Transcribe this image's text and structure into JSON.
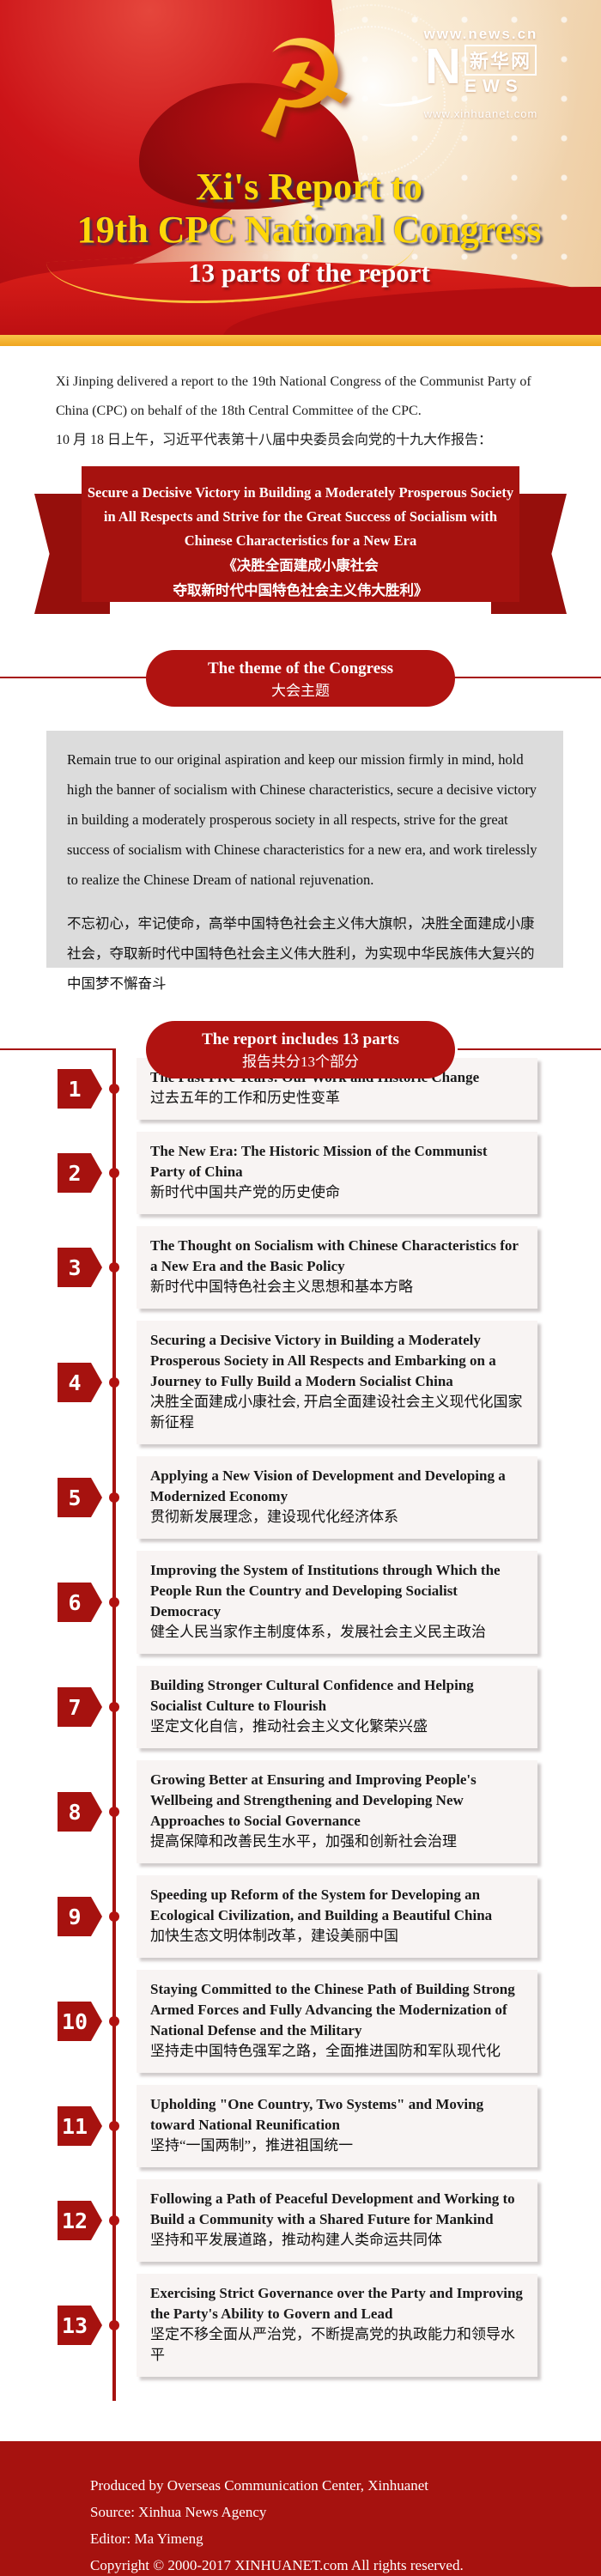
{
  "colors": {
    "accent_red": "#a6120f",
    "gold_band": "#f5b733",
    "title_yellow": "#ffd708"
  },
  "header": {
    "emblem_glyph": "☭",
    "logo": {
      "top_url": "www.news.cn",
      "n_letter": "N",
      "cn_name": "新华网",
      "ews": "EWS",
      "bottom_url": "www.xinhuanet.com"
    },
    "title_line1": "Xi's Report to",
    "title_line2": "19th CPC National Congress",
    "subtitle": "13 parts of the report"
  },
  "intro": {
    "en": "Xi Jinping delivered a report to the 19th National Congress of the Communist Party of China (CPC) on behalf of the 18th Central Committee of the CPC.",
    "cn": "10 月 18 日上午，习近平代表第十八届中央委员会向党的十九大作报告："
  },
  "ribbon": {
    "en": "Secure a Decisive Victory in Building a Moderately Prosperous Society in All Respects and Strive for the Great Success of Socialism with Chinese Characteristics for a New Era",
    "cn_line1": "《决胜全面建成小康社会",
    "cn_line2": "夺取新时代中国特色社会主义伟大胜利》"
  },
  "theme_section": {
    "heading_en": "The theme of the Congress",
    "heading_cn": "大会主题",
    "body_en": "Remain true to our original aspiration and keep our mission firmly in mind, hold high the banner of socialism with Chinese characteristics, secure a decisive victory in building a moderately prosperous society in all respects, strive for the great success of socialism with Chinese characteristics for a new era, and work tirelessly to realize the Chinese Dream of national rejuvenation.",
    "body_cn": "不忘初心，牢记使命，高举中国特色社会主义伟大旗帜，决胜全面建成小康社会，夺取新时代中国特色社会主义伟大胜利，为实现中华民族伟大复兴的中国梦不懈奋斗"
  },
  "parts_section": {
    "heading_en": "The report includes 13 parts",
    "heading_cn": "报告共分13个部分",
    "items": [
      {
        "num": "1",
        "en": "The Past Five Years: Our Work and Historic Change",
        "cn": "过去五年的工作和历史性变革"
      },
      {
        "num": "2",
        "en": "The New Era: The Historic Mission of the Communist Party of China",
        "cn": "新时代中国共产党的历史使命"
      },
      {
        "num": "3",
        "en": "The Thought on Socialism with Chinese Characteristics for a New Era and the Basic Policy",
        "cn": "新时代中国特色社会主义思想和基本方略"
      },
      {
        "num": "4",
        "en": "Securing a Decisive Victory in Building a Moderately Prosperous Society in All Respects and Embarking on a Journey to Fully Build a Modern Socialist China",
        "cn": "决胜全面建成小康社会, 开启全面建设社会主义现代化国家新征程"
      },
      {
        "num": "5",
        "en": "Applying a New Vision of Development and Developing a Modernized Economy",
        "cn": "贯彻新发展理念，建设现代化经济体系"
      },
      {
        "num": "6",
        "en": "Improving the System of Institutions through Which the People Run the Country and Developing Socialist Democracy",
        "cn": "健全人民当家作主制度体系，发展社会主义民主政治"
      },
      {
        "num": "7",
        "en": "Building Stronger Cultural Confidence and Helping Socialist Culture to Flourish",
        "cn": "坚定文化自信，推动社会主义文化繁荣兴盛"
      },
      {
        "num": "8",
        "en": "Growing Better at Ensuring and Improving People's Wellbeing and Strengthening and Developing New Approaches to Social Governance",
        "cn": "提高保障和改善民生水平，加强和创新社会治理"
      },
      {
        "num": "9",
        "en": "Speeding up Reform of the System for Developing an Ecological Civilization, and Building a Beautiful China",
        "cn": "加快生态文明体制改革，建设美丽中国"
      },
      {
        "num": "10",
        "en": "Staying Committed to the Chinese Path of Building Strong Armed Forces and Fully Advancing the Modernization of National Defense and the Military",
        "cn": "坚持走中国特色强军之路，全面推进国防和军队现代化"
      },
      {
        "num": "11",
        "en": "Upholding \"One Country, Two Systems\" and Moving toward National Reunification",
        "cn": "坚持“一国两制”，推进祖国统一"
      },
      {
        "num": "12",
        "en": "Following a Path of Peaceful Development and Working to Build a Community with a Shared Future for Mankind",
        "cn": "坚持和平发展道路，推动构建人类命运共同体"
      },
      {
        "num": "13",
        "en": "Exercising Strict Governance over the Party and Improving the Party's Ability to Govern and Lead",
        "cn": "坚定不移全面从严治党，不断提高党的执政能力和领导水平"
      }
    ]
  },
  "footer": {
    "line1": "Produced by Overseas Communication Center, Xinhuanet",
    "line2": "Source: Xinhua News Agency",
    "line3": "Editor: Ma Yimeng",
    "line4": "Copyright © 2000-2017 XINHUANET.com All rights reserved."
  }
}
